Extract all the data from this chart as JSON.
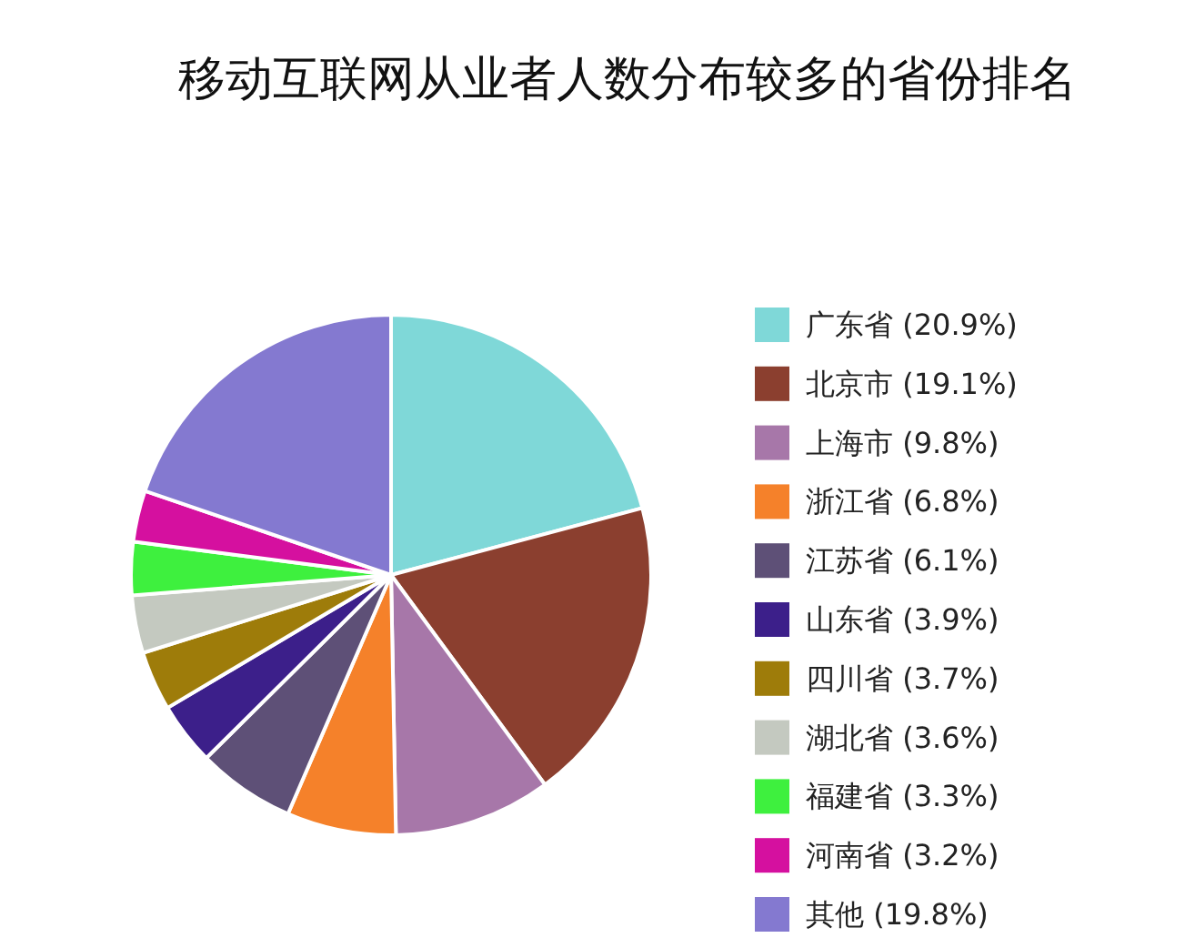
{
  "chart_data": {
    "type": "pie",
    "title": "移动互联网从业者人数分布较多的省份排名",
    "categories": [
      "广东省 (20.9%)",
      "北京市 (19.1%)",
      "上海市 (9.8%)",
      "浙江省 (6.8%)",
      "江苏省 (6.1%)",
      "山东省 (3.9%)",
      "四川省 (3.7%)",
      "湖北省 (3.6%)",
      "福建省 (3.3%)",
      "河南省 (3.2%)",
      "其他 (19.8%)"
    ],
    "values": [
      20.9,
      19.1,
      9.8,
      6.8,
      6.1,
      3.9,
      3.7,
      3.6,
      3.3,
      3.2,
      19.8
    ],
    "colors": [
      "#7fd8d8",
      "#8b3f2f",
      "#a777a9",
      "#f5812a",
      "#5e5077",
      "#3c1f8a",
      "#9e7c0a",
      "#c4c9c0",
      "#3ef03e",
      "#d5109f",
      "#8479d0"
    ],
    "legend": "right"
  }
}
